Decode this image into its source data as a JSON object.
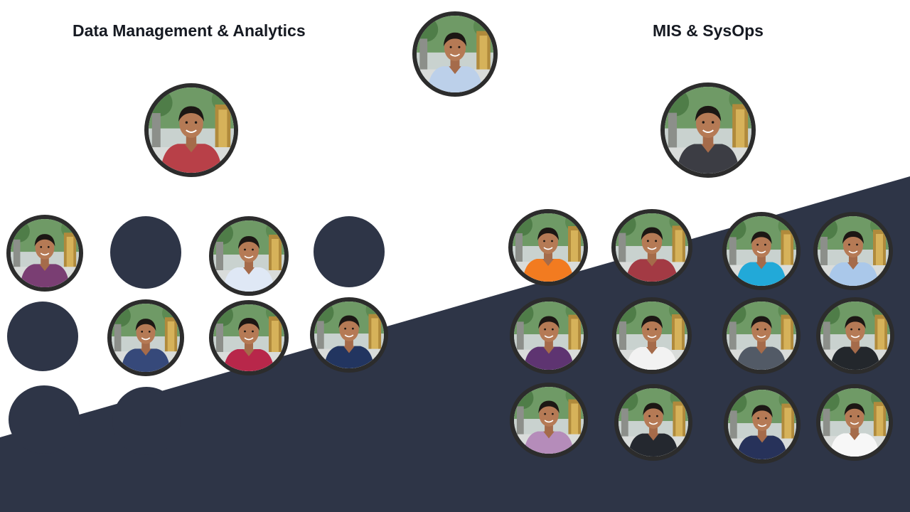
{
  "team_left": {
    "title": "Data Management & Analytics",
    "lead": {
      "shirt": "#b84048"
    },
    "members": [
      {
        "shirt": "#7a3e73"
      },
      {
        "shirt": "#dfe8f5"
      },
      {
        "shirt": "#36497a"
      },
      {
        "shirt": "#b8274a"
      },
      {
        "shirt": "#223560"
      }
    ]
  },
  "head": {
    "shirt": "#bcd0ea"
  },
  "team_right": {
    "title": "MIS & SysOps",
    "lead": {
      "shirt": "#3c3d44"
    },
    "members": [
      {
        "shirt": "#f27b20"
      },
      {
        "shirt": "#a33a44"
      },
      {
        "shirt": "#22a9d8"
      },
      {
        "shirt": "#aac8ea"
      },
      {
        "shirt": "#5e3471"
      },
      {
        "shirt": "#f2f2f2"
      },
      {
        "shirt": "#525a66"
      },
      {
        "shirt": "#23272c"
      },
      {
        "shirt": "#b58cba"
      },
      {
        "shirt": "#24282f"
      },
      {
        "shirt": "#27325a"
      },
      {
        "shirt": "#f7f7f7"
      }
    ]
  },
  "colors": {
    "navy": "#2e3547",
    "frame": "#2c2c2c"
  }
}
